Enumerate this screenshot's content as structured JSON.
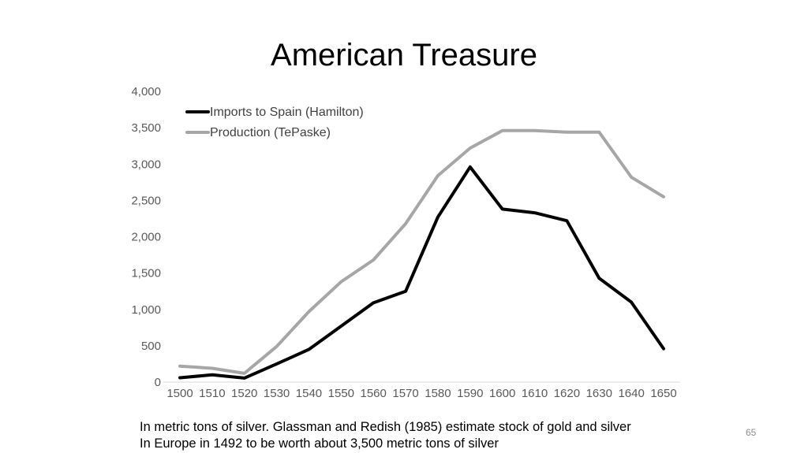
{
  "slide": {
    "title": "American Treasure",
    "caption_line1": "In metric tons of silver. Glassman and Redish (1985) estimate stock of gold and silver",
    "caption_line2": "In Europe in 1492 to be worth about 3,500 metric tons of silver",
    "page_number": "65"
  },
  "chart_data": {
    "type": "line",
    "x": [
      1500,
      1510,
      1520,
      1530,
      1540,
      1550,
      1560,
      1570,
      1580,
      1590,
      1600,
      1610,
      1620,
      1630,
      1640,
      1650
    ],
    "x_tick_labels": [
      "1500",
      "1510",
      "1520",
      "1530",
      "1540",
      "1550",
      "1560",
      "1570",
      "1580",
      "1590",
      "1600",
      "1610",
      "1620",
      "1630",
      "1640",
      "1650"
    ],
    "y_tick_labels": [
      "0",
      "500",
      "1,000",
      "1,500",
      "2,000",
      "2,500",
      "3,000",
      "3,500",
      "4,000"
    ],
    "y_ticks": [
      0,
      500,
      1000,
      1500,
      2000,
      2500,
      3000,
      3500,
      4000
    ],
    "ylim": [
      0,
      4000
    ],
    "grid": false,
    "legend_position": "top-left",
    "series": [
      {
        "name": "Imports to Spain (Hamilton)",
        "color": "#000000",
        "values": [
          60,
          100,
          55,
          250,
          450,
          770,
          1090,
          1250,
          2270,
          2960,
          2380,
          2330,
          2220,
          1430,
          1100,
          460
        ]
      },
      {
        "name": "Production (TePaske)",
        "color": "#a6a6a6",
        "values": [
          220,
          190,
          120,
          490,
          970,
          1380,
          1680,
          2180,
          2840,
          3220,
          3460,
          3460,
          3440,
          3440,
          2820,
          2550
        ]
      }
    ]
  }
}
